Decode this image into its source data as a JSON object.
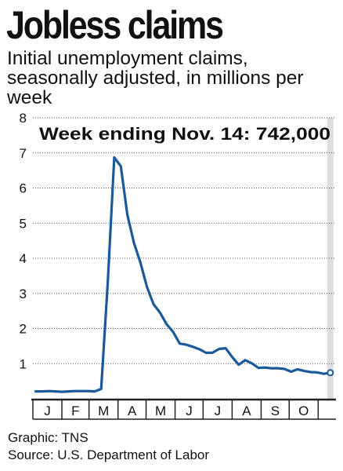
{
  "header": {
    "title": "Jobless claims",
    "subtitle": "Initial unemployment claims, seasonally adjusted, in millions per week"
  },
  "footer": {
    "credit": "Graphic: TNS",
    "source": "Source: U.S. Department of Labor"
  },
  "colors": {
    "line": "#1a5a9a",
    "grid": "#555555",
    "axis": "#222222",
    "highlight": "#dedede"
  },
  "chart_data": {
    "type": "line",
    "title": "",
    "xlabel": "",
    "ylabel": "",
    "ylim": [
      0,
      8
    ],
    "yticks": [
      1,
      2,
      3,
      4,
      5,
      6,
      7,
      8
    ],
    "grid": true,
    "month_labels": [
      "J",
      "F",
      "M",
      "A",
      "M",
      "J",
      "J",
      "A",
      "S",
      "O"
    ],
    "annotation": "Week ending Nov. 14: 742,000",
    "series": [
      {
        "name": "",
        "x": [
          "2020-01-04",
          "2020-01-11",
          "2020-01-18",
          "2020-01-25",
          "2020-02-01",
          "2020-02-08",
          "2020-02-15",
          "2020-02-22",
          "2020-02-29",
          "2020-03-07",
          "2020-03-14",
          "2020-03-21",
          "2020-03-28",
          "2020-04-04",
          "2020-04-11",
          "2020-04-18",
          "2020-04-25",
          "2020-05-02",
          "2020-05-09",
          "2020-05-16",
          "2020-05-23",
          "2020-05-30",
          "2020-06-06",
          "2020-06-13",
          "2020-06-20",
          "2020-06-27",
          "2020-07-04",
          "2020-07-11",
          "2020-07-18",
          "2020-07-25",
          "2020-08-01",
          "2020-08-08",
          "2020-08-15",
          "2020-08-22",
          "2020-08-29",
          "2020-09-05",
          "2020-09-12",
          "2020-09-19",
          "2020-09-26",
          "2020-10-03",
          "2020-10-10",
          "2020-10-17",
          "2020-10-24",
          "2020-10-31",
          "2020-11-07",
          "2020-11-14"
        ],
        "values": [
          0.21,
          0.21,
          0.22,
          0.21,
          0.2,
          0.21,
          0.22,
          0.22,
          0.22,
          0.21,
          0.28,
          3.31,
          6.87,
          6.62,
          5.24,
          4.44,
          3.87,
          3.18,
          2.69,
          2.45,
          2.12,
          1.9,
          1.57,
          1.54,
          1.48,
          1.41,
          1.31,
          1.31,
          1.42,
          1.44,
          1.19,
          0.97,
          1.1,
          1.01,
          0.88,
          0.89,
          0.87,
          0.87,
          0.85,
          0.77,
          0.84,
          0.79,
          0.76,
          0.75,
          0.71,
          0.742
        ]
      }
    ]
  }
}
